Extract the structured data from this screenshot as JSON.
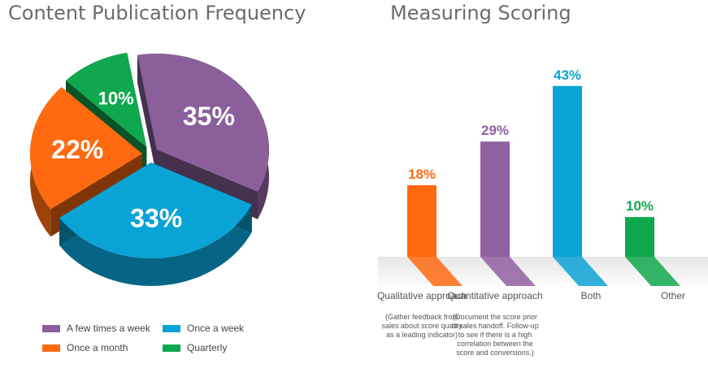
{
  "titles": {
    "left": "Content Publication Frequency",
    "right": "Measuring Scoring"
  },
  "chart_data": [
    {
      "type": "pie",
      "title": "Content Publication Frequency",
      "categories": [
        "A few times a week",
        "Once a week",
        "Once a month",
        "Quarterly"
      ],
      "values": [
        35,
        33,
        22,
        10
      ],
      "labels": [
        "35%",
        "33%",
        "22%",
        "10%"
      ],
      "colors": [
        "#8a5f9a",
        "#0aa3d6",
        "#ff6a10",
        "#10a84e"
      ],
      "legend": "bottom"
    },
    {
      "type": "bar",
      "title": "Measuring Scoring",
      "categories": [
        "Qualitative approach",
        "Quantitative approach",
        "Both",
        "Other"
      ],
      "descriptions": [
        "(Gather feedback from sales about score quality as a leading indicator)",
        "(Document the score prior to sales handoff. Follow-up to see if there is a high correlation between the score and conversions.)",
        "",
        ""
      ],
      "values": [
        18,
        29,
        43,
        10
      ],
      "labels": [
        "18%",
        "29%",
        "43%",
        "10%"
      ],
      "colors": [
        "#ff6a10",
        "#9060a0",
        "#0aa3d6",
        "#10a84e"
      ],
      "ylim": [
        0,
        45
      ]
    }
  ],
  "legend": {
    "items": [
      {
        "label": "A few times a week",
        "color": "#8a5f9a"
      },
      {
        "label": "Once a week",
        "color": "#0aa3d6"
      },
      {
        "label": "Once a month",
        "color": "#ff6a10"
      },
      {
        "label": "Quarterly",
        "color": "#10a84e"
      }
    ]
  }
}
